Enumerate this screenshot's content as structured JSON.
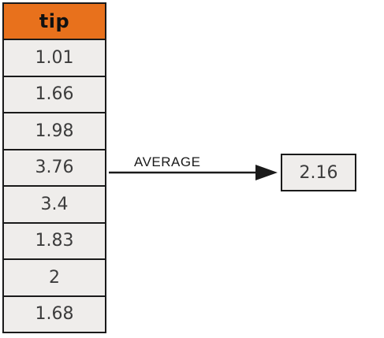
{
  "table": {
    "header": "tip",
    "header_color": "#e8711c",
    "cell_color": "#efedeb",
    "values": [
      "1.01",
      "1.66",
      "1.98",
      "3.76",
      "3.4",
      "1.83",
      "2",
      "1.68"
    ]
  },
  "arrow": {
    "label": "AVERAGE"
  },
  "result": {
    "value": "2.16"
  }
}
